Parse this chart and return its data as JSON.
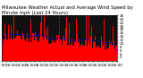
{
  "title": "Milwaukee Weather Actual and Average Wind Speed by Minute mph (Last 24 Hours)",
  "n_points": 1440,
  "ylim": [
    0,
    26
  ],
  "yticks": [
    2,
    4,
    6,
    8,
    10,
    12,
    14,
    16,
    18,
    20,
    22,
    24,
    26
  ],
  "bar_color": "#FF0000",
  "line_color": "#0000CC",
  "background_color": "#FFFFFF",
  "plot_bg_color": "#111111",
  "grid_color": "#888888",
  "title_fontsize": 3.8,
  "tick_fontsize": 3.0,
  "seed": 42
}
